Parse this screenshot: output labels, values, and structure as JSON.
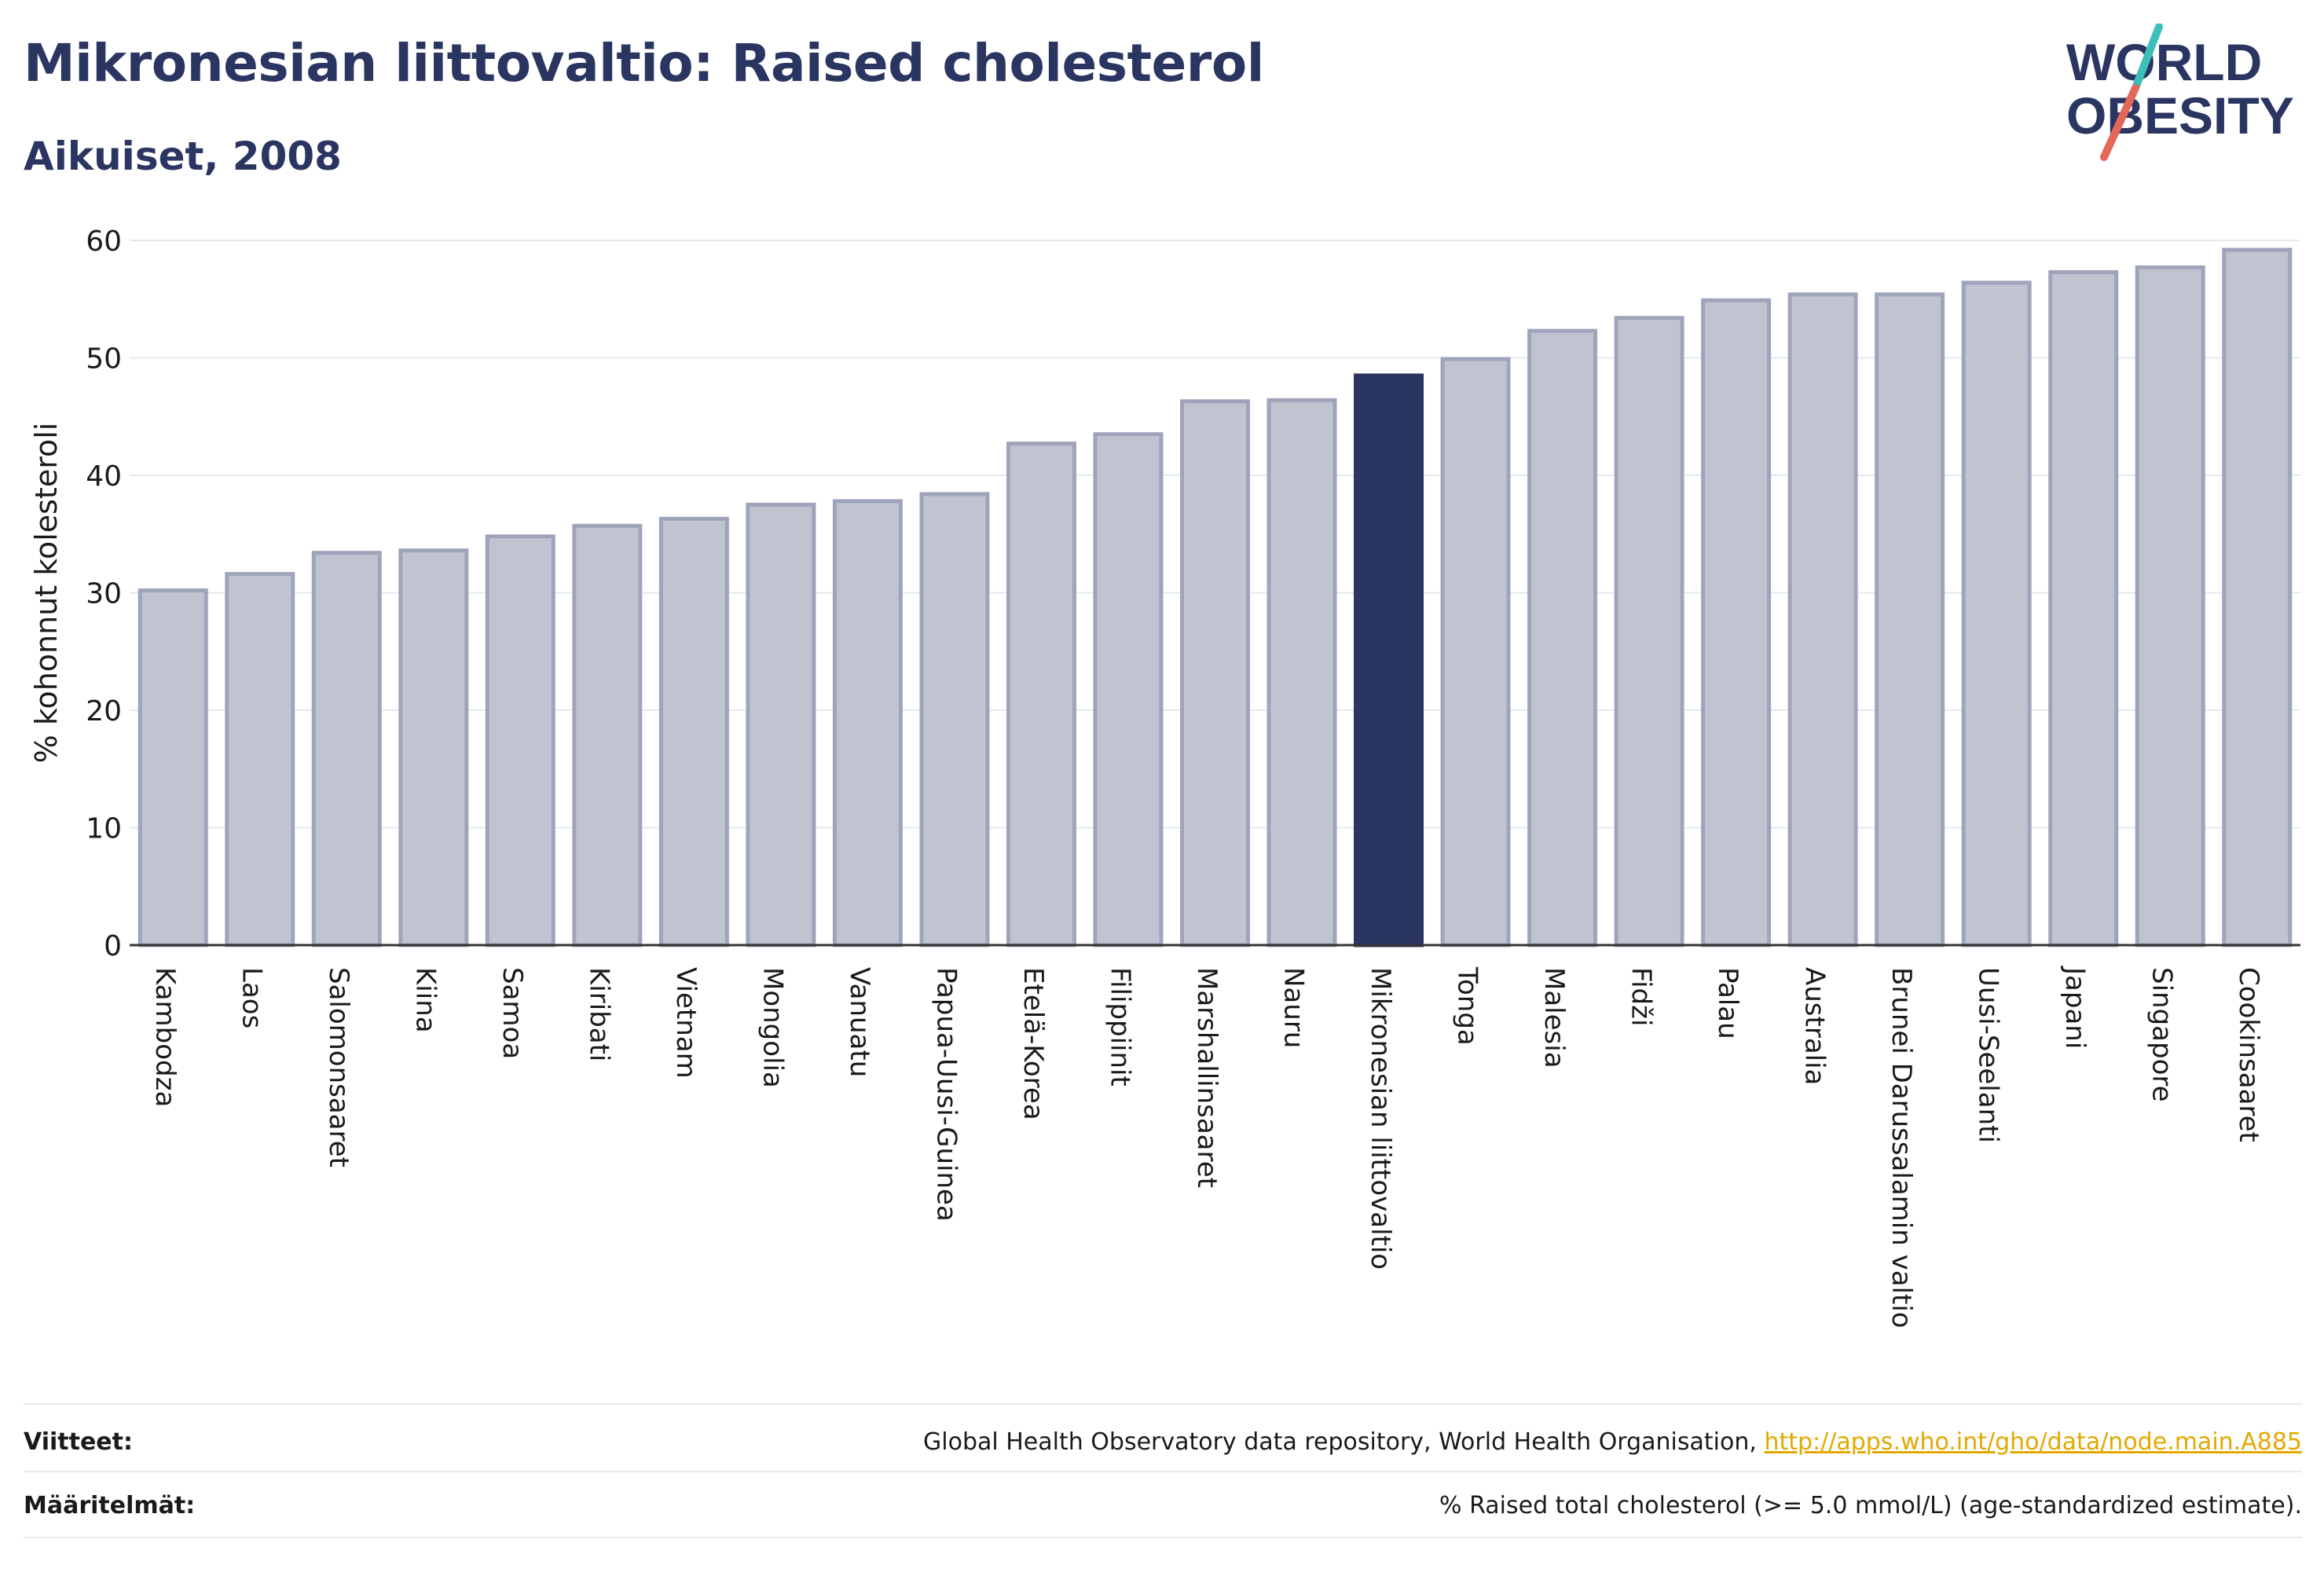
{
  "header": {
    "title": "Mikronesian liittovaltio: Raised cholesterol",
    "subtitle": "Aikuiset, 2008"
  },
  "logo": {
    "line1": "WORLD",
    "line2": "OBESITY",
    "colors": {
      "text": "#2b3561",
      "slash_top": "#3bbfb9",
      "slash_bottom": "#e4685a"
    }
  },
  "chart_data": {
    "type": "bar",
    "ylabel": "% kohonnut kolesteroli",
    "xlabel": "",
    "ylim": [
      0,
      60
    ],
    "yticks": [
      0,
      10,
      20,
      30,
      40,
      50,
      60
    ],
    "grid": true,
    "highlight": "Mikronesian liittovaltio",
    "colors": {
      "bar": "#c0c3d0",
      "bar_border": "#9fa4bb",
      "highlight": "#2b3561",
      "grid": "#e6e8ee",
      "axis": "#333333"
    },
    "categories": [
      "Kambodza",
      "Laos",
      "Salomonsaaret",
      "Kiina",
      "Samoa",
      "Kiribati",
      "Vietnam",
      "Mongolia",
      "Vanuatu",
      "Papua-Uusi-Guinea",
      "Etelä-Korea",
      "Filippiinit",
      "Marshallinsaaret",
      "Nauru",
      "Mikronesian liittovaltio",
      "Tonga",
      "Malesia",
      "Fidži",
      "Palau",
      "Australia",
      "Brunei Darussalamin valtio",
      "Uusi-Seelanti",
      "Japani",
      "Singapore",
      "Cookinsaaret"
    ],
    "values": [
      30.2,
      31.6,
      33.4,
      33.6,
      34.8,
      35.7,
      36.3,
      37.5,
      37.8,
      38.4,
      42.7,
      43.5,
      46.3,
      46.4,
      48.5,
      49.9,
      52.3,
      53.4,
      54.9,
      55.4,
      55.4,
      56.4,
      57.3,
      57.7,
      59.2
    ]
  },
  "footer": {
    "references_label": "Viitteet:",
    "references_text": "Global Health Observatory data repository, World Health Organisation, ",
    "references_link": "http://apps.who.int/gho/data/node.main.A885",
    "definitions_label": "Määritelmät:",
    "definitions_text": "% Raised total cholesterol (>= 5.0 mmol/L) (age-standardized estimate)."
  }
}
